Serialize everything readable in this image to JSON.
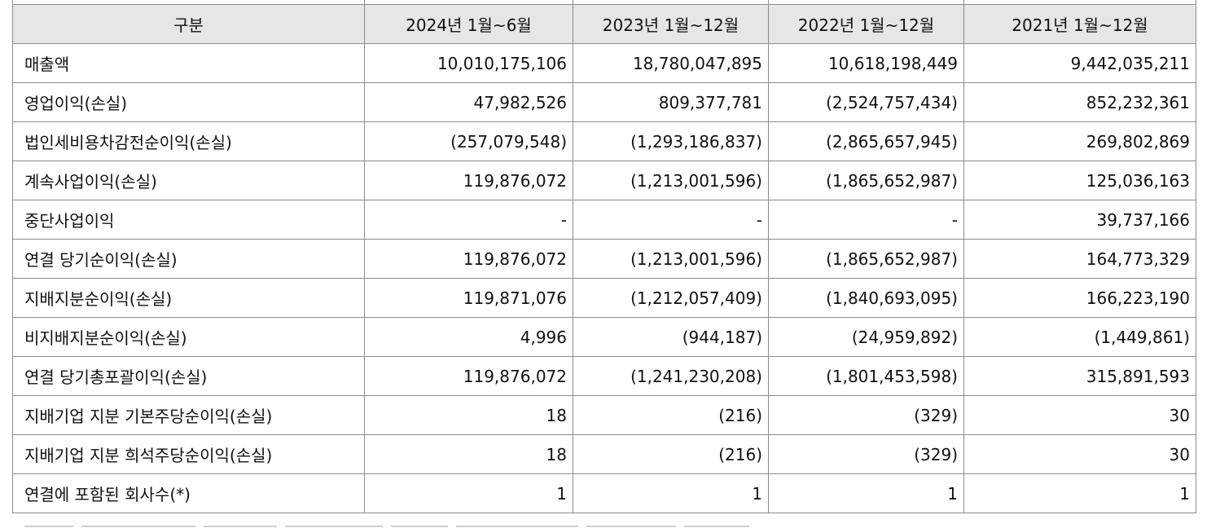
{
  "table": {
    "headers": [
      "구분",
      "2024년 1월~6월",
      "2023년 1월~12월",
      "2022년 1월~12월",
      "2021년 1월~12월"
    ],
    "rows": [
      {
        "label": "매출액",
        "values": [
          "10,010,175,106",
          "18,780,047,895",
          "10,618,198,449",
          "9,442,035,211"
        ]
      },
      {
        "label": "영업이익(손실)",
        "values": [
          "47,982,526",
          "809,377,781",
          "(2,524,757,434)",
          "852,232,361"
        ]
      },
      {
        "label": "법인세비용차감전순이익(손실)",
        "values": [
          "(257,079,548)",
          "(1,293,186,837)",
          "(2,865,657,945)",
          "269,802,869"
        ]
      },
      {
        "label": "계속사업이익(손실)",
        "values": [
          "119,876,072",
          "(1,213,001,596)",
          "(1,865,652,987)",
          "125,036,163"
        ]
      },
      {
        "label": "중단사업이익",
        "values": [
          "-",
          "-",
          "-",
          "39,737,166"
        ]
      },
      {
        "label": "연결 당기순이익(손실)",
        "values": [
          "119,876,072",
          "(1,213,001,596)",
          "(1,865,652,987)",
          "164,773,329"
        ]
      },
      {
        "label": "지배지분순이익(손실)",
        "values": [
          "119,871,076",
          "(1,212,057,409)",
          "(1,840,693,095)",
          "166,223,190"
        ]
      },
      {
        "label": "비지배지분순이익(손실)",
        "values": [
          "4,996",
          "(944,187)",
          "(24,959,892)",
          "(1,449,861)"
        ]
      },
      {
        "label": "연결 당기총포괄이익(손실)",
        "values": [
          "119,876,072",
          "(1,241,230,208)",
          "(1,801,453,598)",
          "315,891,593"
        ]
      },
      {
        "label": "지배기업 지분 기본주당순이익(손실)",
        "values": [
          "18",
          "(216)",
          "(329)",
          "30"
        ]
      },
      {
        "label": "지배기업 지분 희석주당순이익(손실)",
        "values": [
          "18",
          "(216)",
          "(329)",
          "30"
        ]
      },
      {
        "label": "연결에 포함된 회사수(*)",
        "values": [
          "1",
          "1",
          "1",
          "1"
        ]
      }
    ]
  },
  "colors": {
    "header_bg": "#e6e6e6",
    "border": "#8c8c8c",
    "text": "#111111"
  }
}
